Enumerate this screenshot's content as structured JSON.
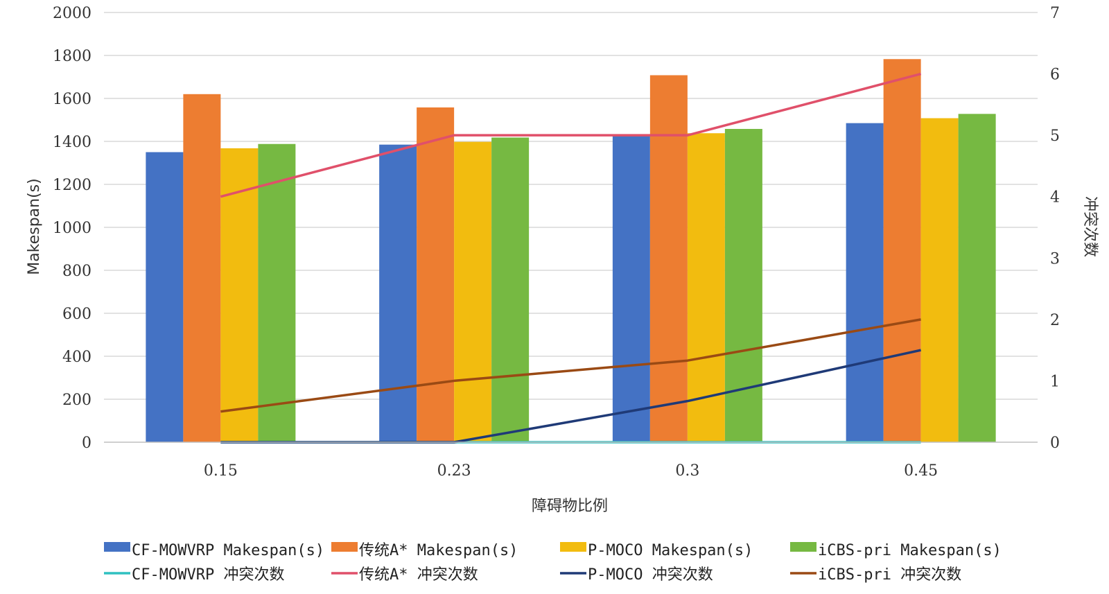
{
  "chart_data": {
    "type": "bar",
    "title": "",
    "xlabel": "障碍物比例",
    "ylabel": "Makespan(s)",
    "y2label": "冲突次数",
    "categories": [
      "0.15",
      "0.23",
      "0.3",
      "0.45"
    ],
    "ylim": [
      0,
      2000
    ],
    "y2lim": [
      0,
      7
    ],
    "yticks": [
      0,
      200,
      400,
      600,
      800,
      1000,
      1200,
      1400,
      1600,
      1800,
      2000
    ],
    "y2ticks": [
      0,
      1,
      2,
      3,
      4,
      5,
      6,
      7
    ],
    "grid": true,
    "legend_position": "bottom",
    "bar_series": [
      {
        "name": "CF-MOWVRP Makespan(s)",
        "color": "#4472c4",
        "values": [
          1350,
          1385,
          1425,
          1485
        ]
      },
      {
        "name": "传统A* Makespan(s)",
        "color": "#ed7d31",
        "values": [
          1620,
          1558,
          1708,
          1783
        ]
      },
      {
        "name": "P-MOCO Makespan(s)",
        "color": "#f2bc0f",
        "values": [
          1368,
          1398,
          1438,
          1508
        ]
      },
      {
        "name": "iCBS-pri Makespan(s)",
        "color": "#76b942",
        "values": [
          1388,
          1418,
          1458,
          1528
        ]
      }
    ],
    "line_series": [
      {
        "name": "CF-MOWVRP 冲突次数",
        "color": "#2fc0c0",
        "values": [
          0,
          0,
          0,
          0
        ]
      },
      {
        "name": "传统A* 冲突次数",
        "color": "#e0506a",
        "values": [
          4,
          5,
          5,
          6
        ]
      },
      {
        "name": "P-MOCO 冲突次数",
        "color": "#1f3a77",
        "values": [
          0,
          0,
          0.67,
          1.5
        ]
      },
      {
        "name": "iCBS-pri 冲突次数",
        "color": "#9a4a14",
        "values": [
          0.5,
          1,
          1.33,
          2
        ]
      }
    ]
  }
}
